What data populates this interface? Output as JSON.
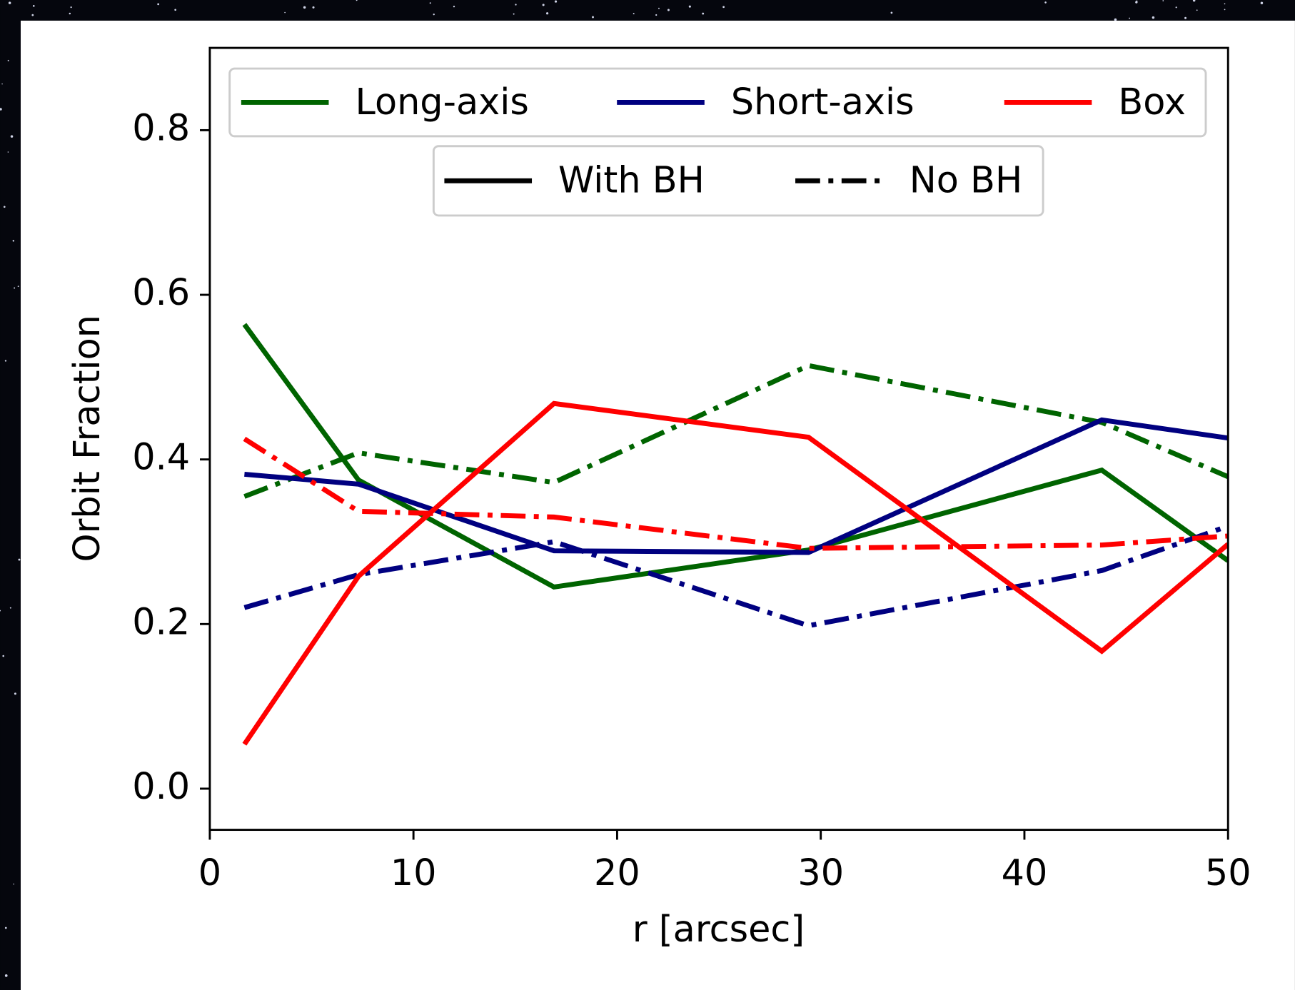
{
  "chart_data": {
    "type": "line",
    "xlabel": "r [arcsec]",
    "ylabel": "Orbit Fraction",
    "x": [
      1.7,
      7.3,
      16.9,
      29.4,
      43.8,
      50
    ],
    "xlim": [
      0,
      50
    ],
    "xticks": [
      0,
      10,
      20,
      30,
      40,
      50
    ],
    "ylim": [
      -0.05,
      0.9
    ],
    "yticks": [
      {
        "value": 0,
        "label": "0.0"
      },
      0.2,
      0.4,
      0.6,
      0.8
    ],
    "legends": [
      {
        "entries": [
          {
            "name": "Long-axis",
            "color": "#006400",
            "linestyle": "solid"
          },
          {
            "name": "Short-axis",
            "color": "#000080",
            "linestyle": "solid"
          },
          {
            "name": "Box",
            "color": "#ff0000",
            "linestyle": "solid"
          }
        ]
      },
      {
        "entries": [
          {
            "name": "With BH",
            "color": "#000000",
            "linestyle": "solid"
          },
          {
            "name": "No BH",
            "color": "#000000",
            "linestyle": "dashdot"
          }
        ]
      }
    ],
    "series": [
      {
        "color": "#006400",
        "linestyle": "solid",
        "values": [
          0.564,
          0.375,
          0.245,
          0.29,
          0.387,
          0.277
        ]
      },
      {
        "color": "#006400",
        "linestyle": "dashdot",
        "values": [
          0.355,
          0.408,
          0.372,
          0.514,
          0.445,
          0.379
        ]
      },
      {
        "color": "#000080",
        "linestyle": "solid",
        "values": [
          0.382,
          0.37,
          0.289,
          0.287,
          0.448,
          0.426
        ]
      },
      {
        "color": "#000080",
        "linestyle": "dashdot",
        "values": [
          0.22,
          0.26,
          0.3,
          0.198,
          0.265,
          0.319
        ]
      },
      {
        "color": "#ff0000",
        "linestyle": "solid",
        "values": [
          0.054,
          0.258,
          0.468,
          0.427,
          0.167,
          0.297
        ]
      },
      {
        "color": "#ff0000",
        "linestyle": "dashdot",
        "values": [
          0.425,
          0.337,
          0.33,
          0.292,
          0.296,
          0.307
        ]
      }
    ]
  }
}
